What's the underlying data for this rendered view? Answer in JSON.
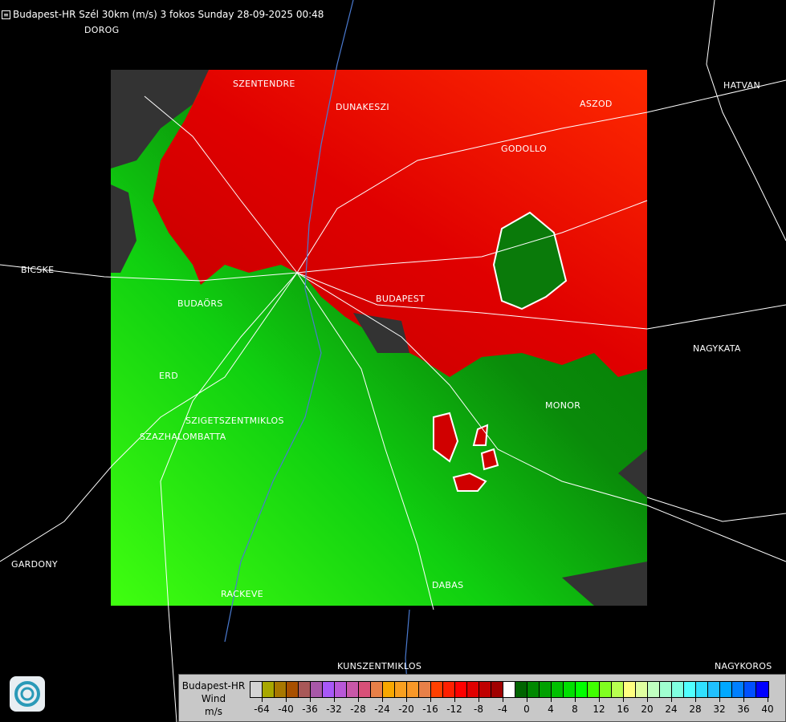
{
  "header": {
    "icon": "menu-icon",
    "title": "Budapest-HR Szél 30km (m/s) 3 fokos Sunday 28-09-2025 00:48"
  },
  "map": {
    "colors": {
      "background": "#000000",
      "no_data": "#333333",
      "approaching_max": "#ff2000",
      "receding": "#00c000"
    },
    "cities": [
      {
        "name": "DOROG"
      },
      {
        "name": "SZENTENDRE"
      },
      {
        "name": "DUNAKESZI"
      },
      {
        "name": "ASZOD"
      },
      {
        "name": "HATVAN"
      },
      {
        "name": "GODOLLO"
      },
      {
        "name": "BICSKE"
      },
      {
        "name": "BUDAÖRS"
      },
      {
        "name": "BUDAPEST"
      },
      {
        "name": "NAGYKATA"
      },
      {
        "name": "ERD"
      },
      {
        "name": "MONOR"
      },
      {
        "name": "SZIGETSZENTMIKLOS"
      },
      {
        "name": "SZAZHALOMBATTA"
      },
      {
        "name": "GARDONY"
      },
      {
        "name": "DABAS"
      },
      {
        "name": "RACKEVE"
      },
      {
        "name": "KUNSZENTMIKLOS"
      },
      {
        "name": "NAGYKOROS"
      }
    ]
  },
  "legend": {
    "station": "Budapest-HR",
    "quantity": "Wind",
    "unit": "m/s",
    "colors": [
      "#d4d4d4",
      "#a8a800",
      "#a87800",
      "#a85000",
      "#a85858",
      "#a858a8",
      "#a858f8",
      "#b858d8",
      "#c858a8",
      "#d85078",
      "#e88048",
      "#f8a800",
      "#f8a020",
      "#f89828",
      "#e88048",
      "#ff4000",
      "#ff2000",
      "#ff0000",
      "#e00000",
      "#c00000",
      "#a00000",
      "#ffffff",
      "#006400",
      "#008800",
      "#00a000",
      "#00c000",
      "#00e000",
      "#00ff00",
      "#40ff00",
      "#80ff20",
      "#b8ff50",
      "#ffff80",
      "#e0ffa0",
      "#c0ffc0",
      "#a0ffd0",
      "#80ffe0",
      "#50ffff",
      "#30e0ff",
      "#20c0ff",
      "#00a8ff",
      "#0080ff",
      "#0050ff",
      "#0000ff"
    ],
    "ticks": [
      "-64",
      "-40",
      "-36",
      "-32",
      "-28",
      "-24",
      "-20",
      "-16",
      "-12",
      "-8",
      "-4",
      "0",
      "4",
      "8",
      "12",
      "16",
      "20",
      "24",
      "28",
      "32",
      "36",
      "40"
    ]
  },
  "logo": {
    "icon": "omsz-logo-icon"
  }
}
